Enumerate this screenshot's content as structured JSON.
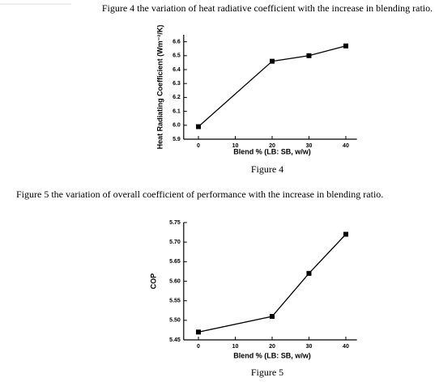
{
  "chart_data": [
    {
      "type": "line",
      "heading": "Figure 4 the variation of heat radiative coefficient with the increase in blending ratio.",
      "caption": "Figure 4",
      "xlabel": "Blend % (LB: SB, w/w)",
      "ylabel": "Heat Radiating Coefficient (Wm⁻²/K)",
      "x": [
        0,
        20,
        30,
        40
      ],
      "values": [
        5.99,
        6.46,
        6.5,
        6.57
      ],
      "xlim": [
        -4,
        43
      ],
      "xticks": [
        0,
        10,
        20,
        30,
        40
      ],
      "ylim": [
        5.9,
        6.65
      ],
      "yticks": [
        5.9,
        {
          "value": 6,
          "label": "6.0"
        },
        6.1,
        6.2,
        6.3,
        6.4,
        6.5,
        6.6
      ],
      "color": "#000000"
    },
    {
      "type": "line",
      "heading": "Figure 5 the variation of overall coefficient of performance with the increase in blending ratio.",
      "caption": "Figure 5",
      "xlabel": "Blend % (LB: SB, w/w)",
      "ylabel": "COP",
      "x": [
        0,
        20,
        30,
        40
      ],
      "values": [
        5.47,
        5.51,
        5.62,
        5.72
      ],
      "xlim": [
        -4,
        43
      ],
      "xticks": [
        0,
        10,
        20,
        30,
        40
      ],
      "ylim": [
        5.45,
        5.75
      ],
      "yticks": [
        5.45,
        {
          "value": 5.5,
          "label": "5.50"
        },
        5.55,
        {
          "value": 5.6,
          "label": "5.60"
        },
        5.65,
        {
          "value": 5.7,
          "label": "5.70"
        },
        5.75
      ],
      "color": "#000000"
    }
  ]
}
